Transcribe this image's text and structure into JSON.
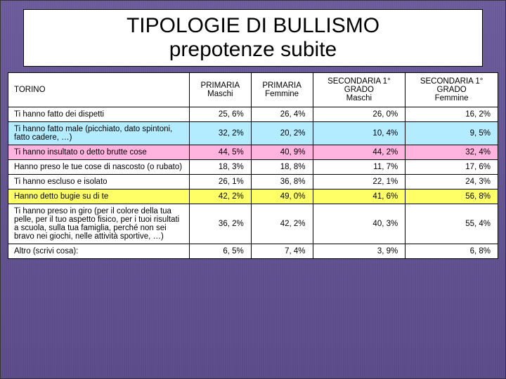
{
  "title": {
    "line1": "TIPOLOGIE DI  BULLISMO",
    "line2": "prepotenze subite"
  },
  "headers": {
    "rowhead": "TORINO",
    "c1a": "PRIMARIA",
    "c1b": "Maschi",
    "c2a": "PRIMARIA",
    "c2b": "Femmine",
    "c3a": "SECONDARIA 1°",
    "c3b": "GRADO",
    "c3c": "Maschi",
    "c4a": "SECONDARIA 1°",
    "c4b": "GRADO",
    "c4c": "Femmine"
  },
  "rows": [
    {
      "label": "Ti hanno fatto dei dispetti",
      "vals": [
        "25, 6%",
        "26, 4%",
        "26, 0%",
        "16, 2%"
      ],
      "hl": ""
    },
    {
      "label": "Ti hanno fatto male (picchiato, dato spintoni, fatto cadere, …)",
      "vals": [
        "32, 2%",
        "20, 2%",
        "10, 4%",
        "9, 5%"
      ],
      "hl": "blue"
    },
    {
      "label": "Ti hanno insultato o detto brutte cose",
      "vals": [
        "44, 5%",
        "40, 9%",
        "44, 2%",
        "32, 4%"
      ],
      "hl": "pink"
    },
    {
      "label": "Hanno preso le tue cose di nascosto (o rubato)",
      "vals": [
        "18, 3%",
        "18, 8%",
        "11, 7%",
        "17, 6%"
      ],
      "hl": ""
    },
    {
      "label": "Ti hanno escluso e isolato",
      "vals": [
        "26, 1%",
        "36, 8%",
        "22, 1%",
        "24, 3%"
      ],
      "hl": ""
    },
    {
      "label": "Hanno detto bugie su di te",
      "vals": [
        "42, 2%",
        "49, 0%",
        "41, 6%",
        "56, 8%"
      ],
      "hl": "yellow"
    },
    {
      "label": "Ti hanno preso in giro (per il colore della tua pelle, per il tuo aspetto fisico, per i tuoi risultati a scuola, sulla tua famiglia, perché non sei bravo nei giochi, nelle attività sportive, …)",
      "vals": [
        "36, 2%",
        "42, 2%",
        "40, 3%",
        "55, 4%"
      ],
      "hl": ""
    },
    {
      "label": "Altro (scrivi cosa):",
      "vals": [
        "6, 5%",
        "7, 4%",
        "3, 9%",
        "6, 8%"
      ],
      "hl": ""
    }
  ],
  "colors": {
    "background_top": "#6a5a9a",
    "background_bottom": "#5a4a88",
    "table_bg": "#ffffff",
    "border": "#000000",
    "hl_blue": "#b3ecff",
    "hl_pink": "#ffb3de",
    "hl_yellow": "#ffff66"
  }
}
